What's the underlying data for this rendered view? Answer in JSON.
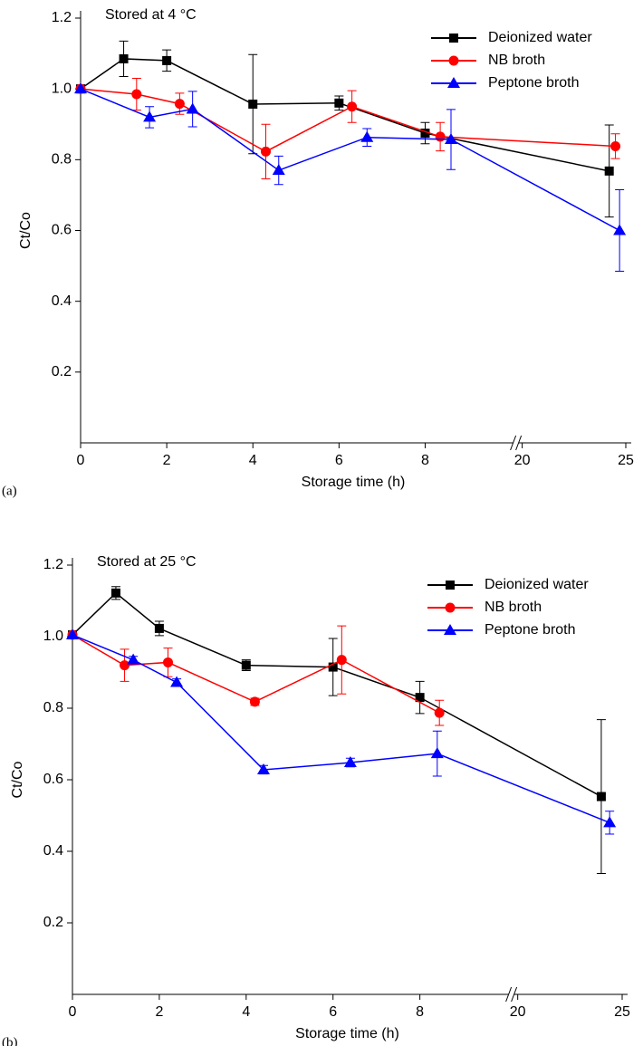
{
  "chart_data": [
    {
      "type": "line",
      "subtitle": "Stored at 4 °C",
      "panel_label": "(a)",
      "x_label": "Storage time (h)",
      "y_label": "Ct/Co",
      "xlim": [
        0,
        25
      ],
      "xbreak": [
        10,
        20
      ],
      "xticks": [
        0,
        2,
        4,
        6,
        8,
        20,
        25
      ],
      "ylim": [
        0,
        1.2
      ],
      "yticks": [
        0.2,
        0.4,
        0.6,
        0.8,
        {
          "value": 1.0,
          "label": "1.0"
        },
        1.2
      ],
      "legend": "top-right",
      "series": [
        {
          "name": "Deionized water",
          "color": "#000000",
          "marker": "square",
          "x": [
            0,
            1,
            2,
            4,
            6,
            8,
            24.2
          ],
          "values": [
            1.0,
            1.085,
            1.08,
            0.957,
            0.96,
            0.875,
            0.768
          ],
          "errors": [
            0,
            0.05,
            0.03,
            0.14,
            0.02,
            0.03,
            0.13
          ]
        },
        {
          "name": "NB broth",
          "color": "#ff0000",
          "marker": "circle",
          "x": [
            0,
            1.3,
            2.3,
            4.3,
            6.3,
            8.35,
            24.5
          ],
          "values": [
            1.0,
            0.985,
            0.958,
            0.823,
            0.95,
            0.865,
            0.838
          ],
          "errors": [
            0,
            0.045,
            0.03,
            0.077,
            0.045,
            0.04,
            0.035
          ]
        },
        {
          "name": "Peptone broth",
          "color": "#0000ff",
          "marker": "triangle",
          "x": [
            0,
            1.6,
            2.6,
            4.6,
            6.65,
            8.6,
            24.7
          ],
          "values": [
            1.0,
            0.92,
            0.943,
            0.77,
            0.863,
            0.857,
            0.6
          ],
          "errors": [
            0,
            0.03,
            0.05,
            0.04,
            0.025,
            0.085,
            0.115
          ]
        }
      ]
    },
    {
      "type": "line",
      "subtitle": "Stored at 25 °C",
      "panel_label": "(b)",
      "x_label": "Storage time (h)",
      "y_label": "Ct/Co",
      "xlim": [
        0,
        25
      ],
      "xbreak": [
        10,
        20
      ],
      "xticks": [
        0,
        2,
        4,
        6,
        8,
        20,
        25
      ],
      "ylim": [
        0,
        1.2
      ],
      "yticks": [
        0.2,
        0.4,
        0.6,
        0.8,
        {
          "value": 1.0,
          "label": "1.0"
        },
        1.2
      ],
      "legend": "top-right",
      "series": [
        {
          "name": "Deionized water",
          "color": "#000000",
          "marker": "square",
          "x": [
            0,
            1,
            2,
            4,
            6,
            8,
            24.0
          ],
          "values": [
            1.005,
            1.122,
            1.023,
            0.92,
            0.915,
            0.83,
            0.553
          ],
          "errors": [
            0,
            0.018,
            0.02,
            0.015,
            0.08,
            0.045,
            0.215
          ]
        },
        {
          "name": "NB broth",
          "color": "#ff0000",
          "marker": "circle",
          "x": [
            0,
            1.2,
            2.2,
            4.2,
            6.2,
            8.45
          ],
          "values": [
            1.005,
            0.92,
            0.928,
            0.818,
            0.935,
            0.787
          ],
          "errors": [
            0,
            0.045,
            0.04,
            0.01,
            0.095,
            0.035
          ]
        },
        {
          "name": "Peptone broth",
          "color": "#0000ff",
          "marker": "triangle",
          "x": [
            0,
            1.4,
            2.4,
            4.4,
            6.4,
            8.4,
            24.4
          ],
          "values": [
            1.005,
            0.935,
            0.872,
            0.628,
            0.648,
            0.673,
            0.48
          ],
          "errors": [
            0,
            0.01,
            0.01,
            0.012,
            0.012,
            0.063,
            0.032
          ]
        }
      ]
    }
  ]
}
